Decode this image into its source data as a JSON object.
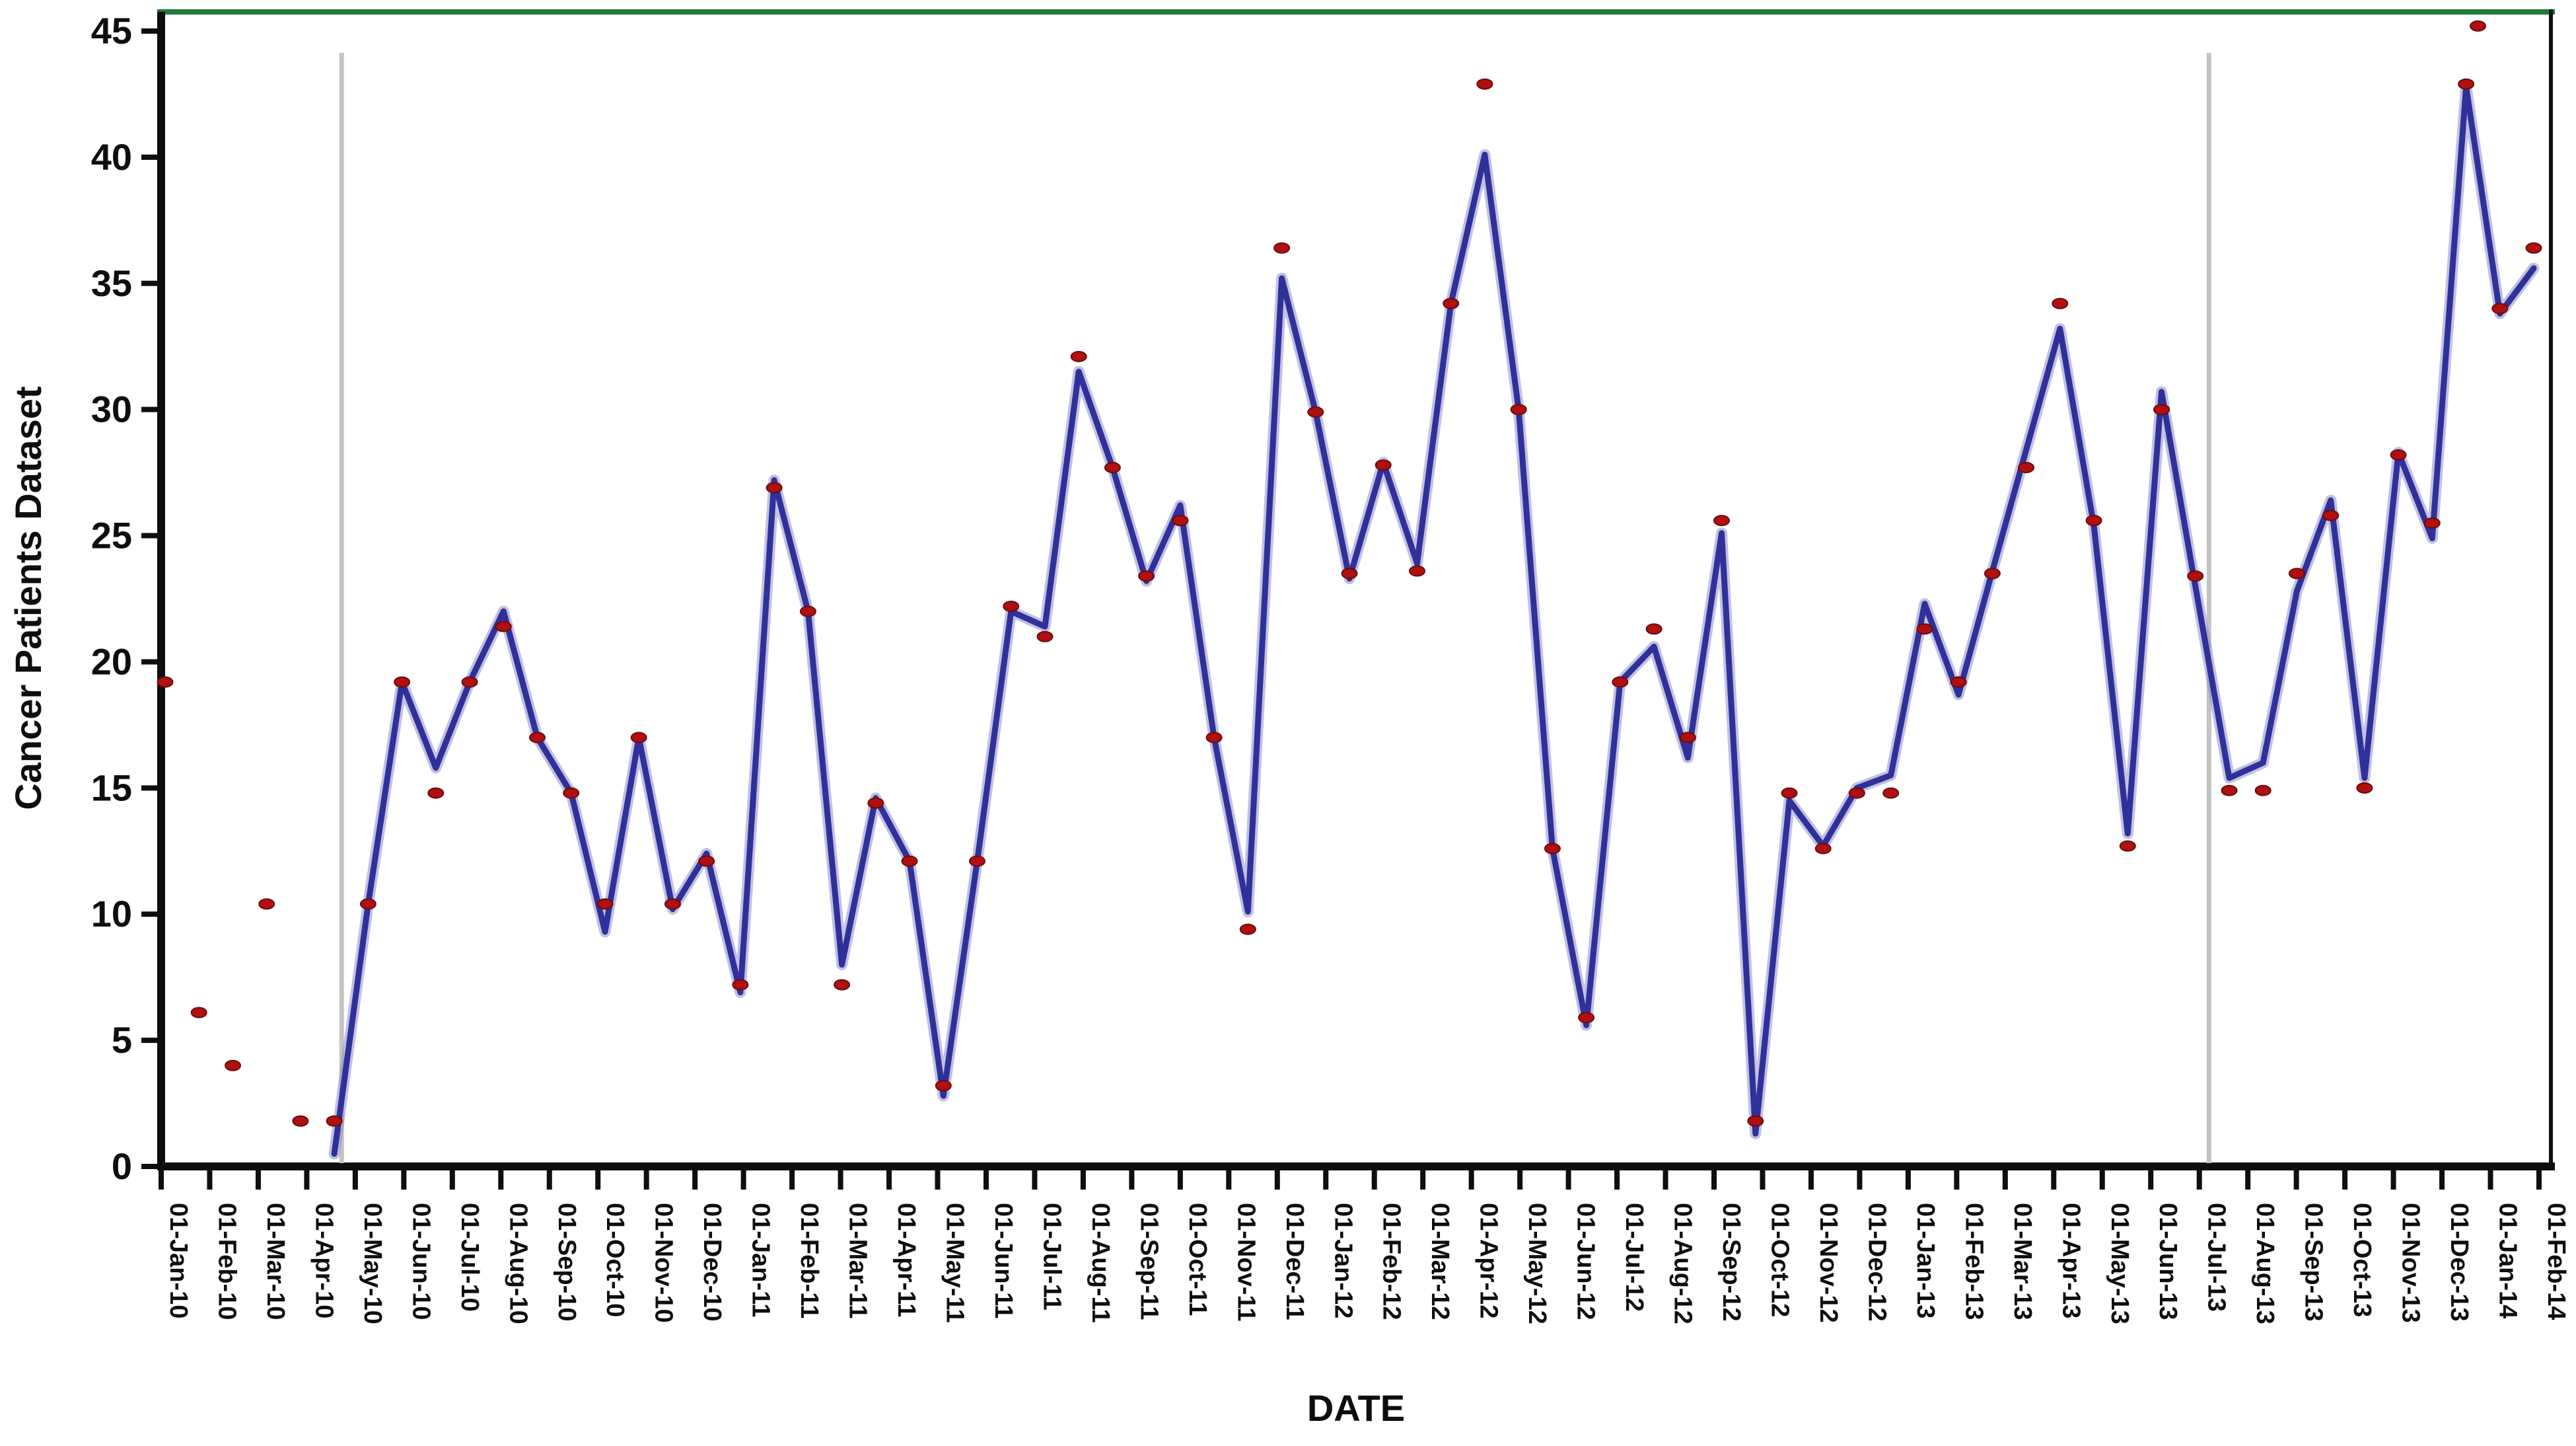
{
  "chart_data": {
    "type": "line",
    "title": "",
    "ylabel": "Cancer Patients Dataset",
    "xlabel": "DATE",
    "ylim": [
      0,
      45
    ],
    "y_ticks": [
      0,
      5,
      10,
      15,
      20,
      25,
      30,
      35,
      40,
      45
    ],
    "grid": "off",
    "legend": "none",
    "x_tick_labels": [
      "01-Jan-10",
      "01-Feb-10",
      "01-Mar-10",
      "01-Apr-10",
      "01-May-10",
      "01-Jun-10",
      "01-Jul-10",
      "01-Aug-10",
      "01-Sep-10",
      "01-Oct-10",
      "01-Nov-10",
      "01-Dec-10",
      "01-Jan-11",
      "01-Feb-11",
      "01-Mar-11",
      "01-Apr-11",
      "01-May-11",
      "01-Jun-11",
      "01-Jul-11",
      "01-Aug-11",
      "01-Sep-11",
      "01-Oct-11",
      "01-Nov-11",
      "01-Dec-11",
      "01-Jan-12",
      "01-Feb-12",
      "01-Mar-12",
      "01-Apr-12",
      "01-May-12",
      "01-Jun-12",
      "01-Jul-12",
      "01-Aug-12",
      "01-Sep-12",
      "01-Oct-12",
      "01-Nov-12",
      "01-Dec-12",
      "01-Jan-13",
      "01-Feb-13",
      "01-Mar-13",
      "01-Apr-13",
      "01-May-13",
      "01-Jun-13",
      "01-Jul-13",
      "01-Aug-13",
      "01-Sep-13",
      "01-Oct-13",
      "01-Nov-13",
      "01-Dec-13",
      "01-Jan-14",
      "01-Feb-14"
    ],
    "series": [
      {
        "name": "actual-observations",
        "style": "red-dot-scatter",
        "values": [
          19.2,
          6.1,
          4.0,
          10.4,
          1.8,
          1.8,
          10.4,
          19.2,
          14.8,
          19.2,
          21.4,
          17.0,
          14.8,
          10.4,
          17.0,
          10.4,
          12.1,
          7.2,
          26.9,
          22.0,
          7.2,
          14.4,
          12.1,
          3.2,
          12.1,
          22.2,
          21.0,
          32.1,
          27.7,
          23.4,
          25.6,
          17.0,
          9.4,
          36.4,
          29.9,
          23.5,
          27.8,
          23.6,
          34.2,
          42.9,
          30.0,
          12.6,
          5.9,
          19.2,
          21.3,
          17.0,
          25.6,
          1.8,
          14.8,
          12.6,
          14.8,
          14.8,
          21.3,
          19.2,
          23.5,
          27.7,
          34.2,
          25.6,
          12.7,
          30.0,
          23.4,
          14.9,
          14.9,
          23.5,
          25.8,
          15.0,
          28.2,
          25.5,
          42.9,
          34.0,
          36.4
        ]
      },
      {
        "name": "fitted-model-line",
        "style": "blue-line",
        "values": [
          null,
          null,
          null,
          null,
          null,
          0.5,
          10.4,
          19.2,
          15.8,
          19.2,
          22.0,
          17.0,
          14.8,
          9.3,
          17.0,
          10.2,
          12.4,
          6.9,
          27.2,
          22.0,
          8.0,
          14.6,
          12.1,
          2.8,
          12.1,
          22.0,
          21.4,
          31.5,
          27.7,
          23.2,
          26.2,
          17.0,
          10.1,
          35.2,
          29.9,
          23.3,
          27.9,
          23.9,
          34.2,
          40.1,
          30.0,
          12.6,
          5.6,
          19.2,
          20.6,
          16.2,
          25.1,
          1.3,
          14.5,
          12.7,
          15.0,
          15.5,
          22.3,
          18.7,
          23.6,
          28.4,
          33.2,
          25.4,
          13.2,
          30.7,
          23.0,
          15.4,
          16.0,
          22.8,
          26.4,
          15.4,
          28.3,
          24.9,
          42.8,
          33.8,
          35.6
        ]
      }
    ],
    "outlier_dot": {
      "point_position": 68.35,
      "value": 45.2
    },
    "vertical_reference_lines": [
      {
        "month_position": 3.72
      },
      {
        "month_position": 42.2
      }
    ],
    "colors": {
      "actual_dot": "#b01010",
      "actual_dot_edge": "#6d0a0a",
      "fitted_line": "#30309a",
      "fitted_line_halo": "#8e8ecb",
      "axis": "#0e0e0e",
      "top_border_green": "#1f7a3c",
      "reference_line_gray": "#c4c4c4",
      "background": "#ffffff"
    }
  }
}
